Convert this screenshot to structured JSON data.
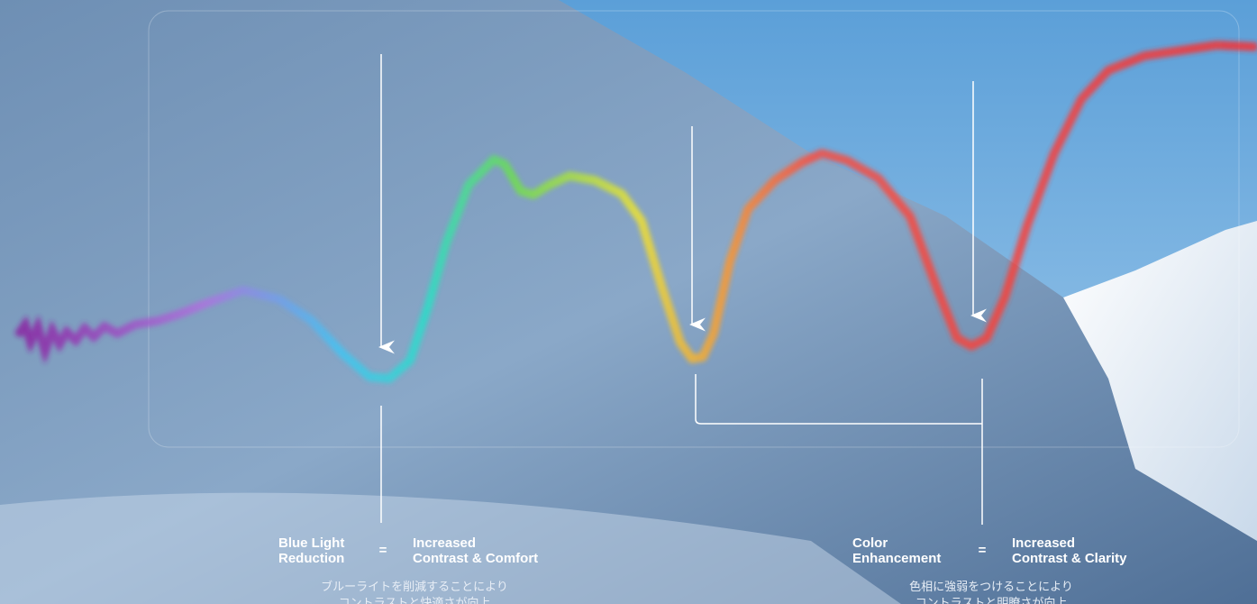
{
  "annotations": [
    {
      "label_lines": [
        "Blue Light",
        "Reduction"
      ],
      "equals": "=",
      "result_lines": [
        "Increased",
        "Contrast & Comfort"
      ],
      "japanese_lines": [
        "ブルーライトを削減することにより",
        "コントラストと快適さが向上"
      ]
    },
    {
      "label_lines": [
        "Color",
        "Enhancement"
      ],
      "equals": "=",
      "result_lines": [
        "Increased",
        "Contrast & Clarity"
      ],
      "japanese_lines": [
        "色相に強弱をつけることにより",
        "コントラストと明瞭さが向上"
      ]
    }
  ]
}
